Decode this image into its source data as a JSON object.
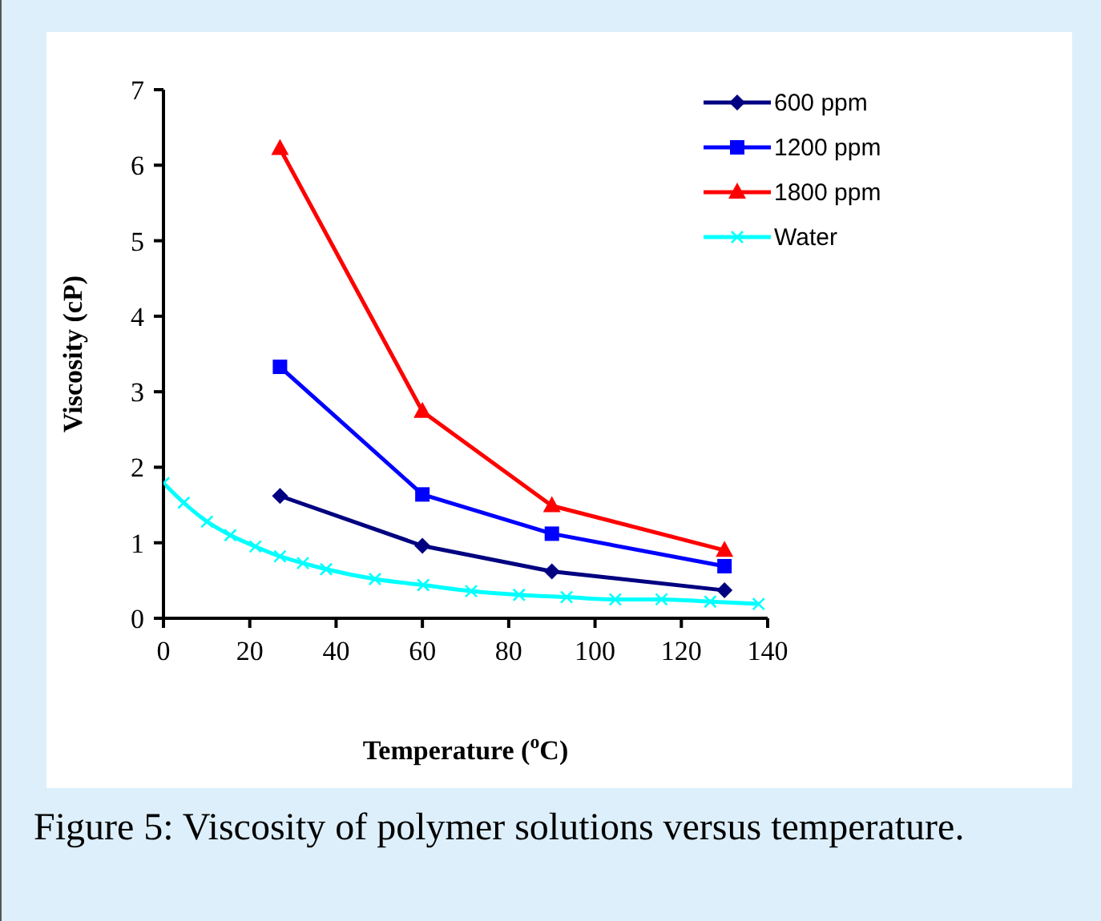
{
  "chart_data": {
    "type": "line",
    "xlabel": "Temperature ($^{o}$C)",
    "ylabel": "Viscosity (cP)",
    "annotations": [
      "Figure 5: Viscosity of polymer solutions versus temperature."
    ],
    "xlim": [
      0,
      140
    ],
    "xticks": [
      0,
      20,
      40,
      60,
      80,
      100,
      120,
      140
    ],
    "ylim": [
      0,
      7
    ],
    "yticks": [
      0,
      1,
      2,
      3,
      4,
      5,
      6,
      7
    ],
    "grid": false,
    "legend": "top right",
    "series": [
      {
        "name": "600 ppm",
        "color": "#000080",
        "marker": "diamond",
        "x": [
          27,
          60,
          90,
          130
        ],
        "values": [
          1.62,
          0.96,
          0.62,
          0.37
        ]
      },
      {
        "name": "1200 ppm",
        "color": "#0000ff",
        "marker": "square",
        "x": [
          27,
          60,
          90,
          130
        ],
        "values": [
          3.33,
          1.64,
          1.12,
          0.69
        ]
      },
      {
        "name": "1800 ppm",
        "color": "#ff0000",
        "marker": "triangle",
        "x": [
          27,
          60,
          90,
          130
        ],
        "values": [
          6.22,
          2.74,
          1.49,
          0.9
        ]
      },
      {
        "name": "Water",
        "color": "#00ffff",
        "marker": "cross",
        "x": [
          0,
          4.7,
          10.1,
          15.5,
          21.3,
          27,
          32.3,
          37.7,
          49,
          60.2,
          71.3,
          82.4,
          93.4,
          104.7,
          115.4,
          126.7,
          137.9
        ],
        "values": [
          1.79,
          1.53,
          1.28,
          1.1,
          0.95,
          0.82,
          0.73,
          0.65,
          0.52,
          0.44,
          0.36,
          0.31,
          0.28,
          0.25,
          0.25,
          0.22,
          0.19
        ]
      }
    ]
  }
}
